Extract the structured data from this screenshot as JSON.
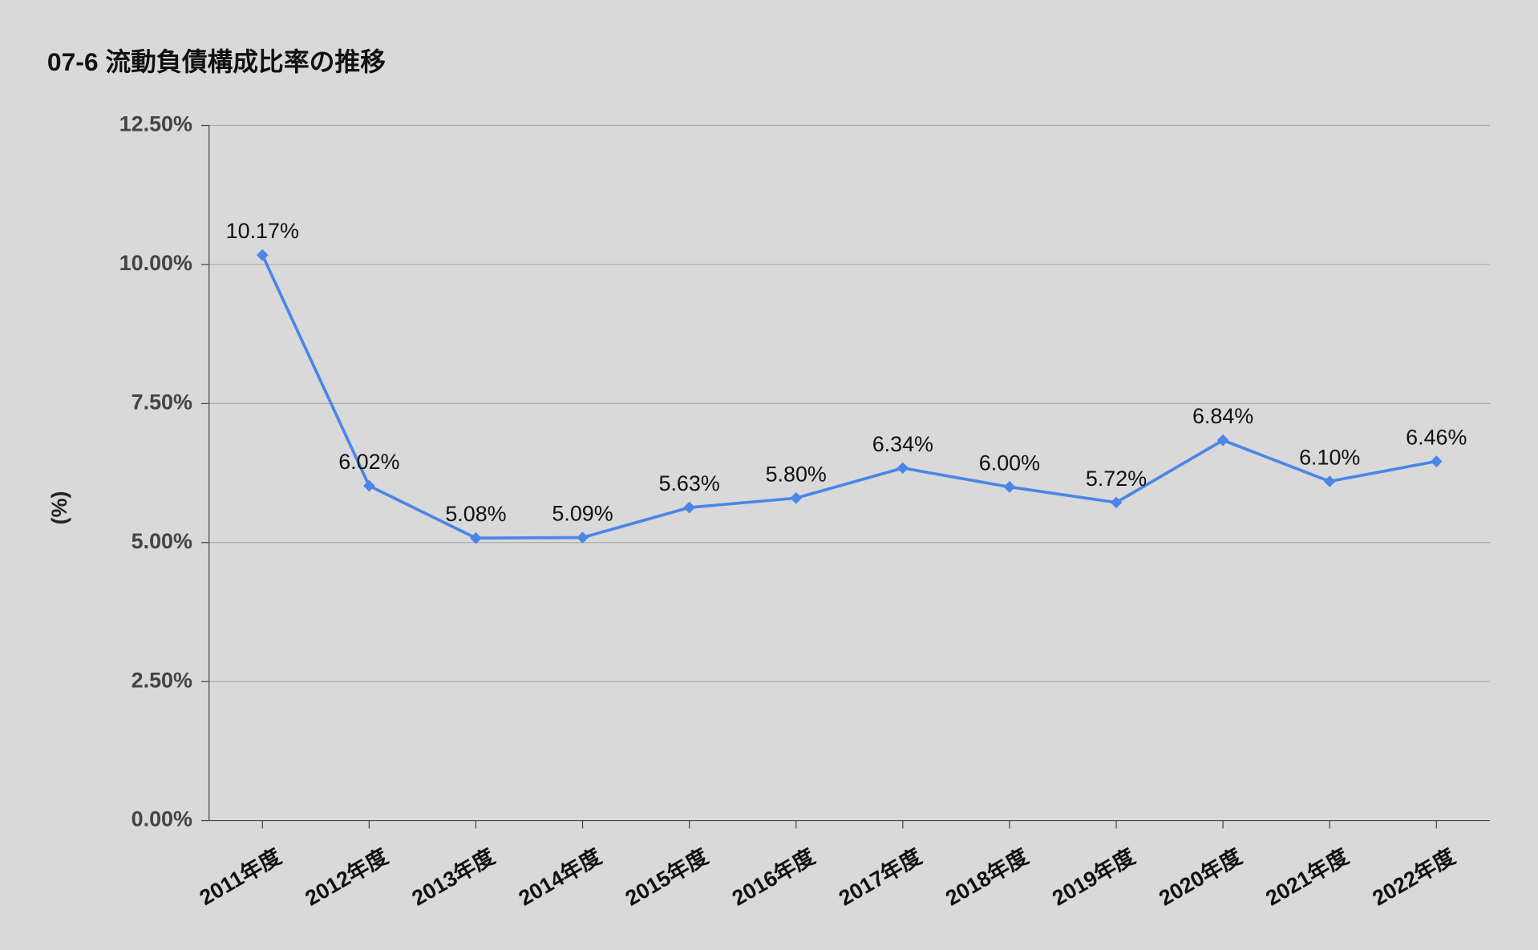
{
  "chart_data": {
    "type": "line",
    "title": "07-6 流動負債構成比率の推移",
    "y_label": "(%)",
    "categories": [
      "2011年度",
      "2012年度",
      "2013年度",
      "2014年度",
      "2015年度",
      "2016年度",
      "2017年度",
      "2018年度",
      "2019年度",
      "2020年度",
      "2021年度",
      "2022年度"
    ],
    "values": [
      10.17,
      6.02,
      5.08,
      5.09,
      5.63,
      5.8,
      6.34,
      6.0,
      5.72,
      6.84,
      6.1,
      6.46
    ],
    "value_labels": [
      "10.17%",
      "6.02%",
      "5.08%",
      "5.09%",
      "5.63%",
      "5.80%",
      "6.34%",
      "6.00%",
      "5.72%",
      "6.84%",
      "6.10%",
      "6.46%"
    ],
    "color": "#4a86e8",
    "ylim": [
      0,
      12.5
    ],
    "yticks": [
      {
        "value": 0,
        "label": "0.00%"
      },
      {
        "value": 2.5,
        "label": "2.50%"
      },
      {
        "value": 5,
        "label": "5.00%"
      },
      {
        "value": 7.5,
        "label": "7.50%"
      },
      {
        "value": 10,
        "label": "10.00%"
      },
      {
        "value": 12.5,
        "label": "12.50%"
      }
    ],
    "grid": true
  }
}
